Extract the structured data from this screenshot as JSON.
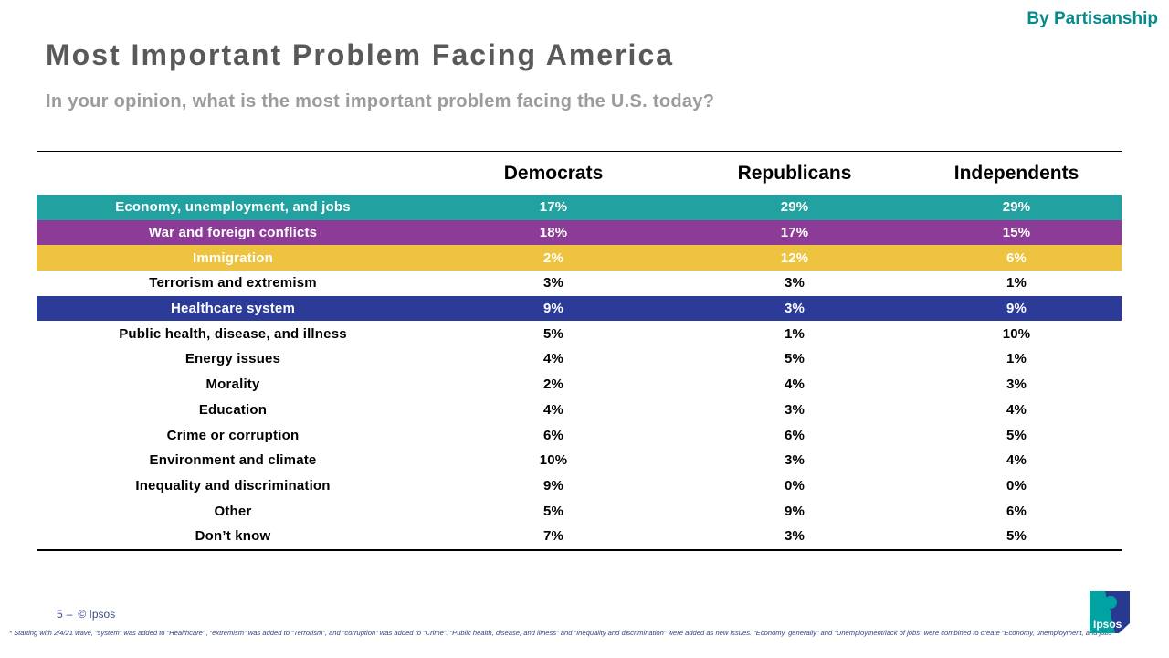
{
  "page": {
    "tag": "By Partisanship",
    "title": "Most Important Problem Facing America",
    "subtitle": "In your opinion, what is the most important problem facing the U.S. today?"
  },
  "table": {
    "columns": [
      "Democrats",
      "Republicans",
      "Independents"
    ],
    "rows": [
      {
        "label": "Economy, unemployment, and jobs",
        "values": [
          "17%",
          "29%",
          "29%"
        ],
        "highlight": "teal"
      },
      {
        "label": "War and foreign conflicts",
        "values": [
          "18%",
          "17%",
          "15%"
        ],
        "highlight": "purple"
      },
      {
        "label": "Immigration",
        "values": [
          "2%",
          "12%",
          "6%"
        ],
        "highlight": "gold"
      },
      {
        "label": "Terrorism and extremism",
        "values": [
          "3%",
          "3%",
          "1%"
        ],
        "highlight": "none"
      },
      {
        "label": "Healthcare system",
        "values": [
          "9%",
          "3%",
          "9%"
        ],
        "highlight": "blue"
      },
      {
        "label": "Public health, disease, and illness",
        "values": [
          "5%",
          "1%",
          "10%"
        ],
        "highlight": "none"
      },
      {
        "label": "Energy issues",
        "values": [
          "4%",
          "5%",
          "1%"
        ],
        "highlight": "none"
      },
      {
        "label": "Morality",
        "values": [
          "2%",
          "4%",
          "3%"
        ],
        "highlight": "none"
      },
      {
        "label": "Education",
        "values": [
          "4%",
          "3%",
          "4%"
        ],
        "highlight": "none"
      },
      {
        "label": "Crime or corruption",
        "values": [
          "6%",
          "6%",
          "5%"
        ],
        "highlight": "none"
      },
      {
        "label": "Environment and climate",
        "values": [
          "10%",
          "3%",
          "4%"
        ],
        "highlight": "none"
      },
      {
        "label": "Inequality and discrimination",
        "values": [
          "9%",
          "0%",
          "0%"
        ],
        "highlight": "none"
      },
      {
        "label": "Other",
        "values": [
          "5%",
          "9%",
          "6%"
        ],
        "highlight": "none"
      },
      {
        "label": "Don’t know",
        "values": [
          "7%",
          "3%",
          "5%"
        ],
        "highlight": "none"
      }
    ]
  },
  "colors": {
    "teal": "#21A2A0",
    "purple": "#8C3B97",
    "gold": "#EDC340",
    "blue": "#2B3B97",
    "accent_teal": "#058B8C",
    "title_gray": "#595959",
    "subtitle_gray": "#9C9C9C",
    "footnote_navy": "#32427E"
  },
  "footer": {
    "page_number": "5",
    "dash": "‒",
    "copyright": "© Ipsos",
    "footnote": "* Starting with 2/4/21 wave, “system” was added to “Healthcare” , “extremism” was added to “Terrorism”, and “corruption” was added to “Crime”. “Public health, disease, and illness” and “Inequality and discrimination” were added as new issues. “Economy, generally” and “Unemployment/lack of jobs” were combined to create “Economy, unemployment, and jobs”",
    "logo_text": "Ipsos"
  },
  "chart_data": {
    "type": "table",
    "title": "Most Important Problem Facing America",
    "subtitle": "In your opinion, what is the most important problem facing the U.S. today?",
    "categories": [
      "Economy, unemployment, and jobs",
      "War and foreign conflicts",
      "Immigration",
      "Terrorism and extremism",
      "Healthcare system",
      "Public health, disease, and illness",
      "Energy issues",
      "Morality",
      "Education",
      "Crime or corruption",
      "Environment and climate",
      "Inequality and discrimination",
      "Other",
      "Don’t know"
    ],
    "series": [
      {
        "name": "Democrats",
        "values": [
          17,
          18,
          2,
          3,
          9,
          5,
          4,
          2,
          4,
          6,
          10,
          9,
          5,
          7
        ]
      },
      {
        "name": "Republicans",
        "values": [
          29,
          17,
          12,
          3,
          3,
          1,
          5,
          4,
          3,
          6,
          3,
          0,
          9,
          3
        ]
      },
      {
        "name": "Independents",
        "values": [
          29,
          15,
          6,
          1,
          9,
          10,
          1,
          3,
          4,
          5,
          4,
          0,
          6,
          5
        ]
      }
    ],
    "highlighted_rows": [
      {
        "category": "Economy, unemployment, and jobs",
        "color": "#21A2A0"
      },
      {
        "category": "War and foreign conflicts",
        "color": "#8C3B97"
      },
      {
        "category": "Immigration",
        "color": "#EDC340"
      },
      {
        "category": "Healthcare system",
        "color": "#2B3B97"
      }
    ],
    "units": "%"
  }
}
